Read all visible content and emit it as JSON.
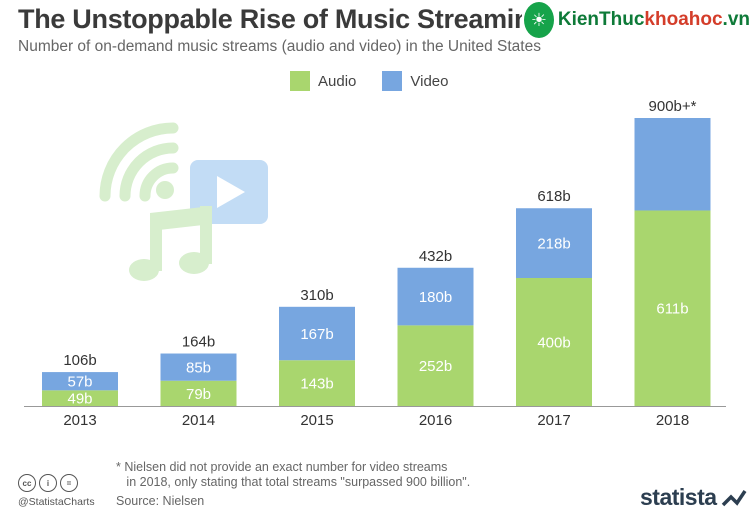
{
  "header": {
    "title": "The Unstoppable Rise of Music Streaming",
    "subtitle": "Number of on-demand music streams (audio and video) in the United States"
  },
  "watermark": {
    "logo_icon": "lightbulb-logo-icon",
    "text_part1": "KienThuc",
    "text_part2": "khoahoc",
    "text_part3": ".vn"
  },
  "colors": {
    "audio": "#a9d66e",
    "video": "#77a6e0",
    "label_on_bar": "#ffffff",
    "axis": "#999999",
    "illustration_green": "#d7eecd",
    "illustration_blue": "#c2dcf5"
  },
  "chart_data": {
    "type": "bar",
    "stacked": true,
    "categories": [
      "2013",
      "2014",
      "2015",
      "2016",
      "2017",
      "2018"
    ],
    "series": [
      {
        "name": "Audio",
        "values": [
          49,
          79,
          143,
          252,
          400,
          611
        ],
        "labels": [
          "49b",
          "79b",
          "143b",
          "252b",
          "400b",
          "611b"
        ]
      },
      {
        "name": "Video",
        "values": [
          57,
          85,
          167,
          180,
          218,
          289
        ],
        "labels": [
          "57b",
          "85b",
          "167b",
          "180b",
          "218b",
          ""
        ]
      }
    ],
    "totals": [
      "106b",
      "164b",
      "310b",
      "432b",
      "618b",
      "900b+*"
    ],
    "ylim": [
      0,
      900
    ],
    "grid": false,
    "legend_position": "top-center"
  },
  "footer": {
    "footnote": "* Nielsen did not provide an exact number for video streams\n   in 2018, only stating that total streams \"surpassed 900 billion\".",
    "source": "Source: Nielsen",
    "handle": "@StatistaCharts",
    "brand": "statista",
    "license_icons": [
      "cc-icon",
      "by-icon",
      "nd-icon"
    ]
  }
}
